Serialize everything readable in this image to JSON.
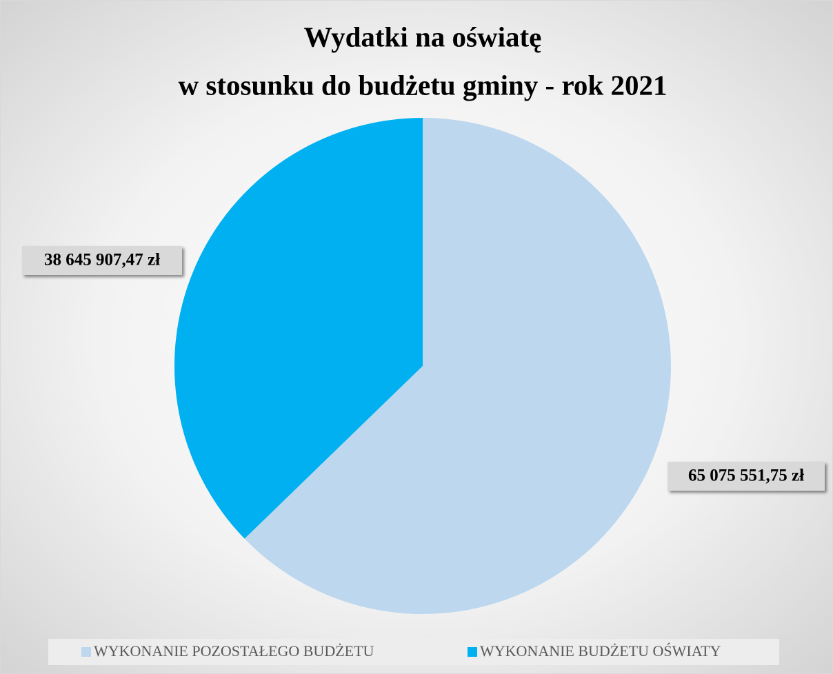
{
  "chart_data": {
    "type": "pie",
    "title": [
      "Wydatki na oświatę",
      "w stosunku do budżetu gminy - rok 2021"
    ],
    "categories": [
      "WYKONANIE POZOSTAŁEGO BUDŻETU",
      "WYKONANIE BUDŻETU OŚWIATY"
    ],
    "values": [
      65075551.75,
      38645907.47
    ],
    "value_labels": [
      "65 075 551,75 zł",
      "38 645 907,47 zł"
    ],
    "colors": [
      "#bdd7ee",
      "#00b0f0"
    ],
    "legend": "bottom"
  }
}
